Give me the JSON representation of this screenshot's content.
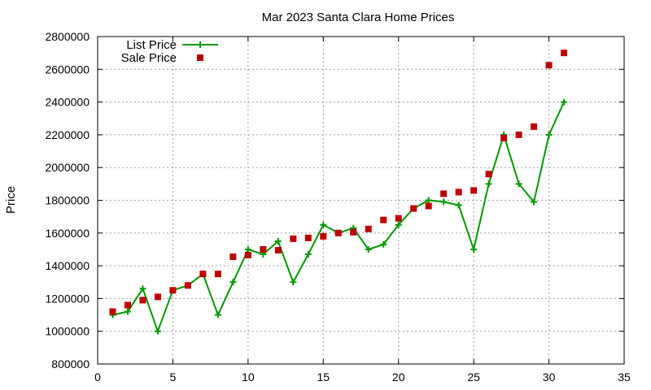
{
  "chart_data": {
    "type": "line",
    "title": "Mar 2023 Santa Clara Home Prices",
    "xlabel": "",
    "ylabel": "Price",
    "xlim": [
      0,
      35
    ],
    "ylim": [
      800000,
      2800000
    ],
    "xticks": [
      0,
      5,
      10,
      15,
      20,
      25,
      30,
      35
    ],
    "yticks": [
      800000,
      1000000,
      1200000,
      1400000,
      1600000,
      1800000,
      2000000,
      2200000,
      2400000,
      2600000,
      2800000
    ],
    "grid": true,
    "legend_position": "top-left",
    "series": [
      {
        "name": "List Price",
        "style": "line+cross",
        "color": "#009900",
        "points": [
          [
            1,
            1100000
          ],
          [
            2,
            1120000
          ],
          [
            3,
            1260000
          ],
          [
            4,
            1000000
          ],
          [
            5,
            1250000
          ],
          [
            6,
            1280000
          ],
          [
            7,
            1350000
          ],
          [
            8,
            1100000
          ],
          [
            9,
            1300000
          ],
          [
            10,
            1500000
          ],
          [
            11,
            1470000
          ],
          [
            12,
            1550000
          ],
          [
            13,
            1300000
          ],
          [
            14,
            1470000
          ],
          [
            15,
            1650000
          ],
          [
            16,
            1600000
          ],
          [
            17,
            1630000
          ],
          [
            18,
            1500000
          ],
          [
            19,
            1530000
          ],
          [
            20,
            1650000
          ],
          [
            21,
            1750000
          ],
          [
            22,
            1800000
          ],
          [
            23,
            1790000
          ],
          [
            24,
            1770000
          ],
          [
            25,
            1500000
          ],
          [
            26,
            1900000
          ],
          [
            27,
            2200000
          ],
          [
            28,
            1900000
          ],
          [
            29,
            1790000
          ],
          [
            30,
            2200000
          ],
          [
            31,
            2400000
          ]
        ]
      },
      {
        "name": "Sale Price",
        "style": "square",
        "color": "#c00000",
        "points": [
          [
            1,
            1120000
          ],
          [
            2,
            1160000
          ],
          [
            3,
            1190000
          ],
          [
            4,
            1210000
          ],
          [
            5,
            1250000
          ],
          [
            6,
            1280000
          ],
          [
            7,
            1350000
          ],
          [
            8,
            1350000
          ],
          [
            9,
            1455000
          ],
          [
            10,
            1465000
          ],
          [
            11,
            1500000
          ],
          [
            12,
            1495000
          ],
          [
            13,
            1565000
          ],
          [
            14,
            1570000
          ],
          [
            15,
            1580000
          ],
          [
            16,
            1600000
          ],
          [
            17,
            1605000
          ],
          [
            18,
            1625000
          ],
          [
            19,
            1680000
          ],
          [
            20,
            1690000
          ],
          [
            21,
            1750000
          ],
          [
            22,
            1765000
          ],
          [
            23,
            1840000
          ],
          [
            24,
            1850000
          ],
          [
            25,
            1860000
          ],
          [
            26,
            1960000
          ],
          [
            27,
            2180000
          ],
          [
            28,
            2200000
          ],
          [
            29,
            2250000
          ],
          [
            30,
            2625000
          ],
          [
            31,
            2700000
          ]
        ]
      }
    ]
  }
}
